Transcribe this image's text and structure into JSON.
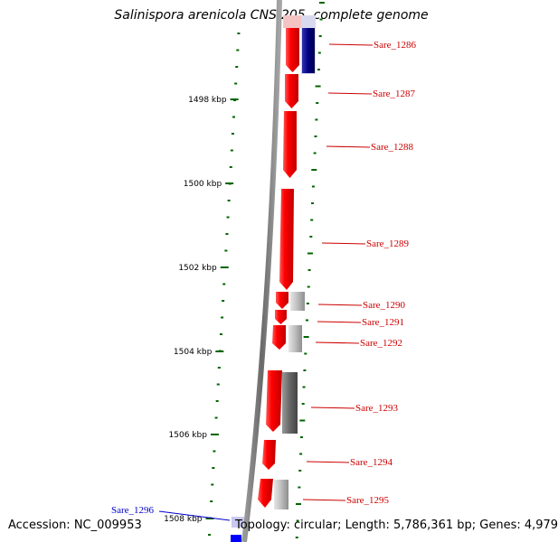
{
  "title": "Salinispora arenicola CNS-205, complete genome",
  "accession_label": "Accession: NC_009953",
  "topology_label": "Topology: circular; Length: 5,786,361 bp; Genes: 4,979",
  "colors": {
    "forward_gene": "#ff0000",
    "rna_or_structural": "#000080",
    "gray_feature": "#a0a0a0",
    "dark_gray_feature": "#666666",
    "tick": "#006400",
    "backbone": "#7a7a7a",
    "gene_label": "#cc0000",
    "highlight_label": "#0000cc"
  },
  "kbp_ticks": [
    {
      "label": "1498 kbp"
    },
    {
      "label": "1500 kbp"
    },
    {
      "label": "1502 kbp"
    },
    {
      "label": "1504 kbp"
    },
    {
      "label": "1506 kbp"
    },
    {
      "label": "1508 kbp"
    }
  ],
  "genes": [
    {
      "name": "Sare_1286"
    },
    {
      "name": "Sare_1287"
    },
    {
      "name": "Sare_1288"
    },
    {
      "name": "Sare_1289"
    },
    {
      "name": "Sare_1290"
    },
    {
      "name": "Sare_1291"
    },
    {
      "name": "Sare_1292"
    },
    {
      "name": "Sare_1293"
    },
    {
      "name": "Sare_1294"
    },
    {
      "name": "Sare_1295"
    },
    {
      "name": "Sare_1296"
    }
  ]
}
